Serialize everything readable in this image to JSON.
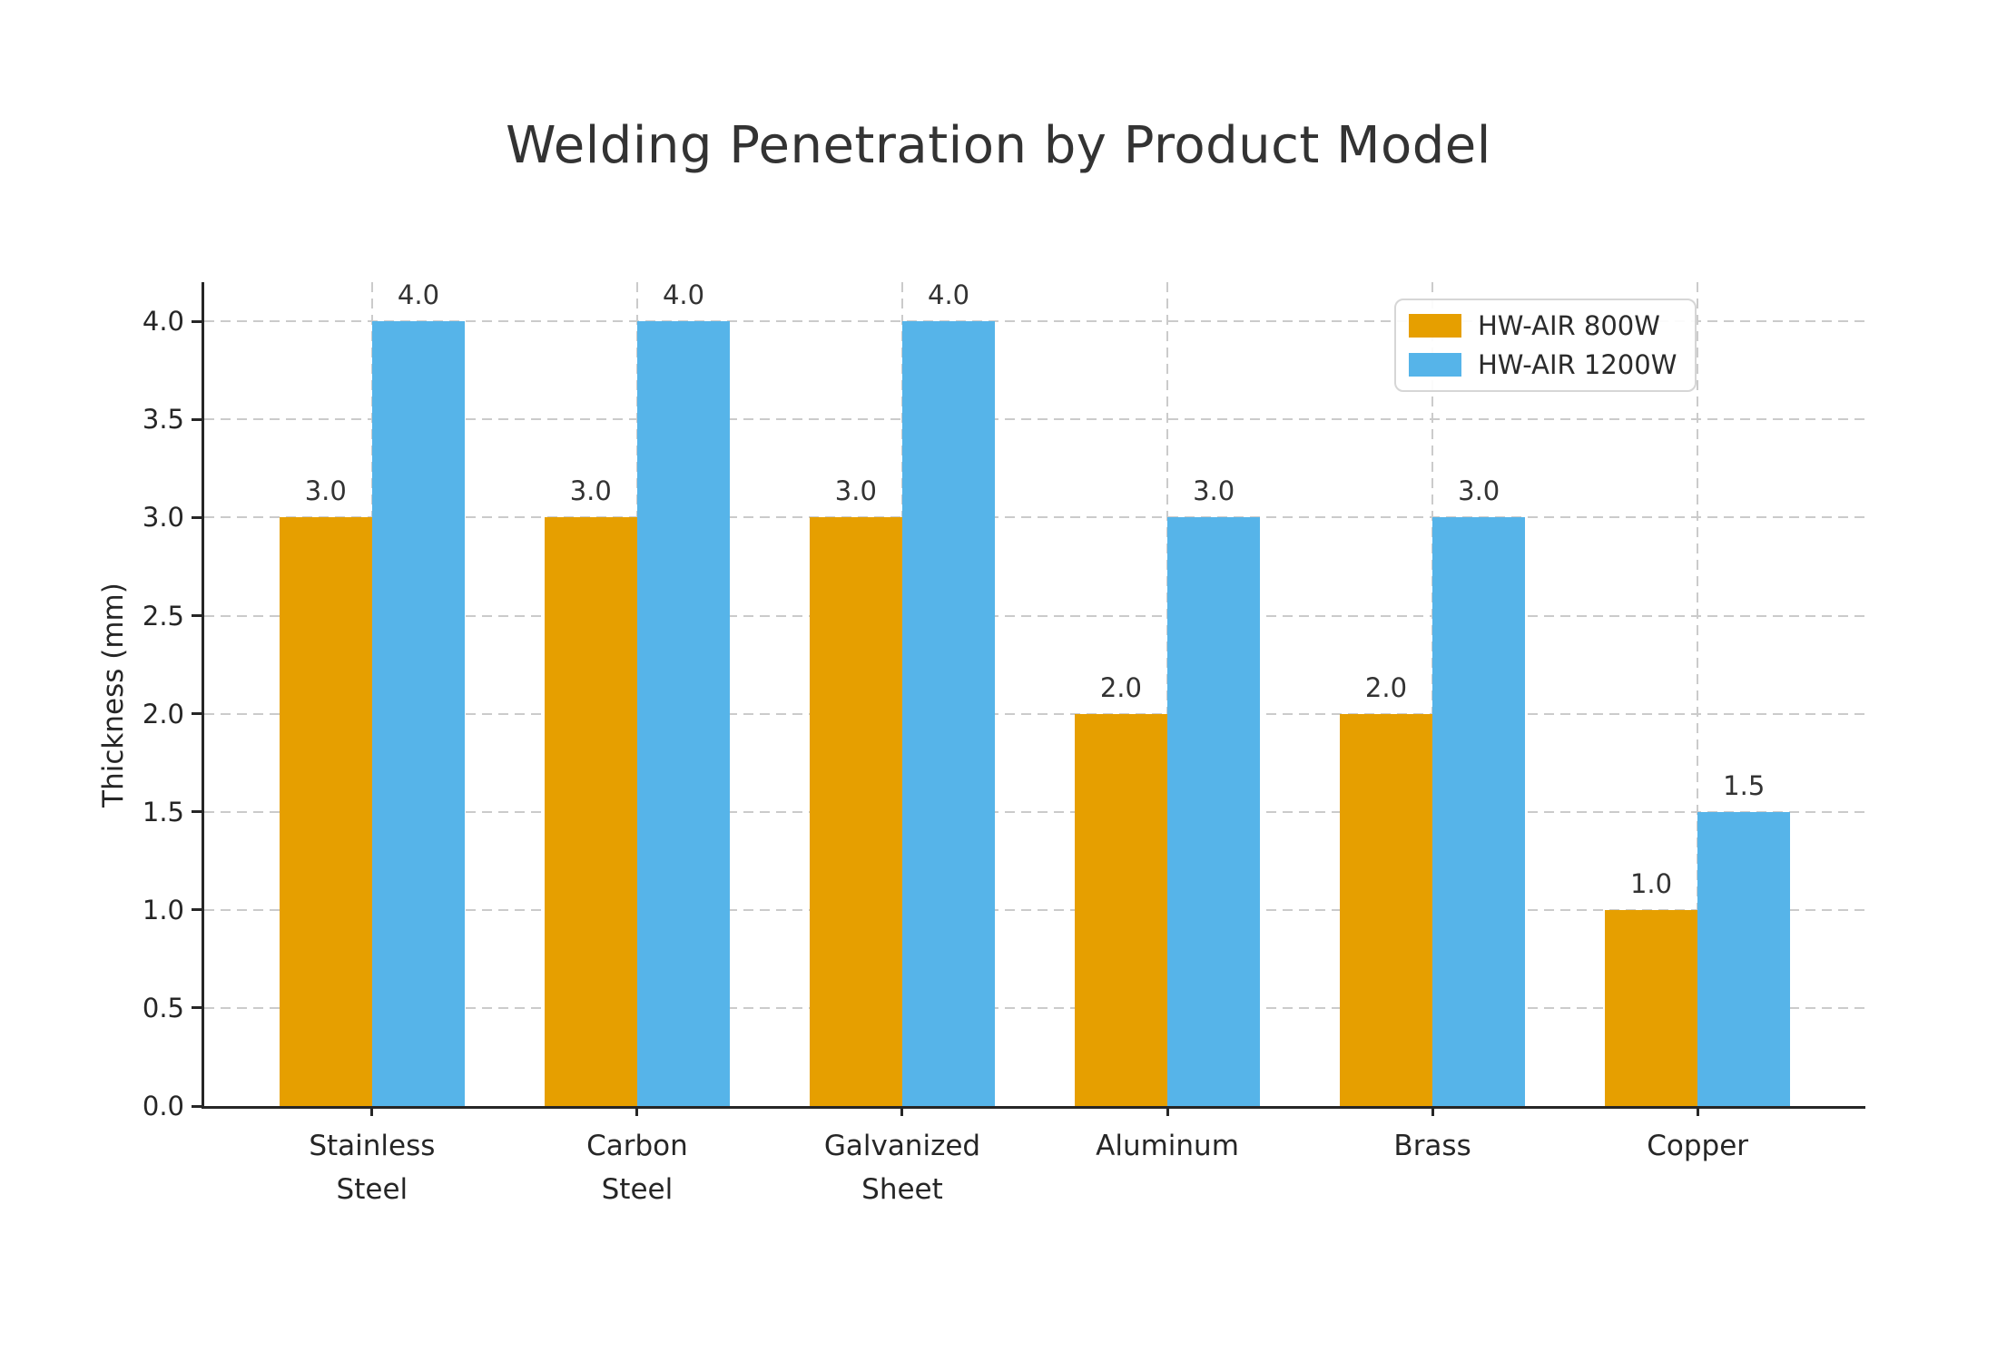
{
  "chart_data": {
    "type": "bar",
    "title": "Welding Penetration by Product Model",
    "xlabel": "",
    "ylabel": "Thickness (mm)",
    "categories": [
      "Stainless\nSteel",
      "Carbon\nSteel",
      "Galvanized\nSheet",
      "Aluminum",
      "Brass",
      "Copper"
    ],
    "series": [
      {
        "name": "HW-AIR 800W",
        "color": "#E69F00",
        "values": [
          3.0,
          3.0,
          3.0,
          2.0,
          2.0,
          1.0
        ]
      },
      {
        "name": "HW-AIR 1200W",
        "color": "#56B4E9",
        "values": [
          4.0,
          4.0,
          4.0,
          3.0,
          3.0,
          1.5
        ]
      }
    ],
    "bar_value_labels": [
      [
        "3.0",
        "3.0",
        "3.0",
        "2.0",
        "2.0",
        "1.0"
      ],
      [
        "4.0",
        "4.0",
        "4.0",
        "3.0",
        "3.0",
        "1.5"
      ]
    ],
    "ytick_labels": [
      "0.0",
      "0.5",
      "1.0",
      "1.5",
      "2.0",
      "2.5",
      "3.0",
      "3.5",
      "4.0"
    ],
    "ytick_values": [
      0,
      0.5,
      1.0,
      1.5,
      2.0,
      2.5,
      3.0,
      3.5,
      4.0
    ],
    "ylim": [
      0,
      4.2
    ],
    "grid": "dashed-both-axes",
    "grid_color": "#cbcbcb",
    "axis_color": "#262626",
    "text_color": "#333333",
    "legend_position": "upper right",
    "legend_border_color": "#d6d6d6",
    "background_color": "#ffffff"
  }
}
